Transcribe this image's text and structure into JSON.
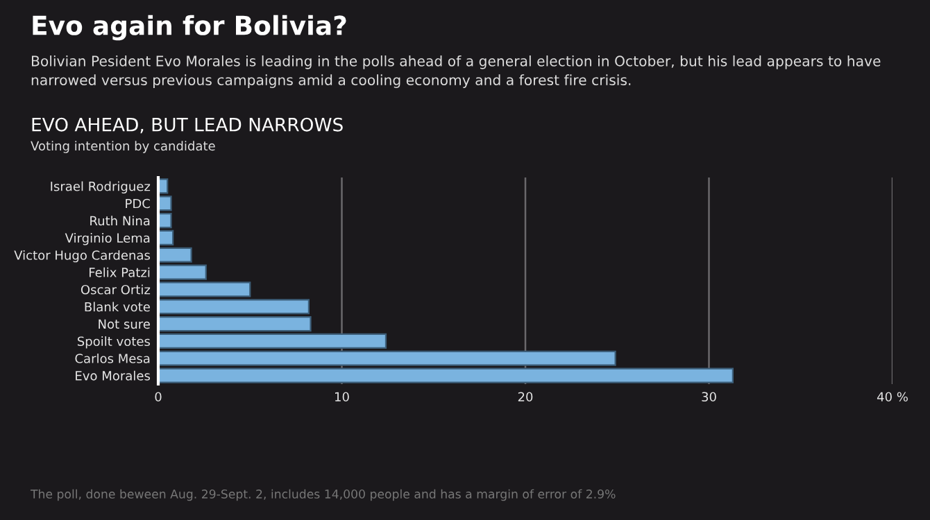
{
  "chart_data": {
    "type": "bar",
    "orientation": "horizontal",
    "title": "Evo again for Bolivia?",
    "subtitle": "Bolivian Pesident Evo Morales is leading in the polls ahead of a general election in October, but his lead appears to have narrowed versus previous campaigns amid a cooling economy and a forest fire crisis.",
    "annotations": [
      "EVO AHEAD, BUT LEAD NARROWS",
      "Voting intention by candidate",
      "The poll, done beween Aug. 29-Sept. 2, includes 14,000 people and has a margin of error of 2.9%"
    ],
    "categories": [
      "Israel Rodriguez",
      "PDC",
      "Ruth Nina",
      "Virginio Lema",
      "Victor Hugo Cardenas",
      "Felix Patzi",
      "Oscar Ortiz",
      "Blank vote",
      "Not sure",
      "Spoilt votes",
      "Carlos Mesa",
      "Evo Morales"
    ],
    "values": [
      0.5,
      0.7,
      0.7,
      0.8,
      1.8,
      2.6,
      5.0,
      8.2,
      8.3,
      12.4,
      24.9,
      31.3
    ],
    "color": "#7ab3df",
    "xlim": [
      0,
      40
    ],
    "xticks": [
      0,
      10,
      20,
      30,
      {
        "value": 40,
        "label": "40 %"
      }
    ],
    "grid": "x",
    "legend": false
  }
}
